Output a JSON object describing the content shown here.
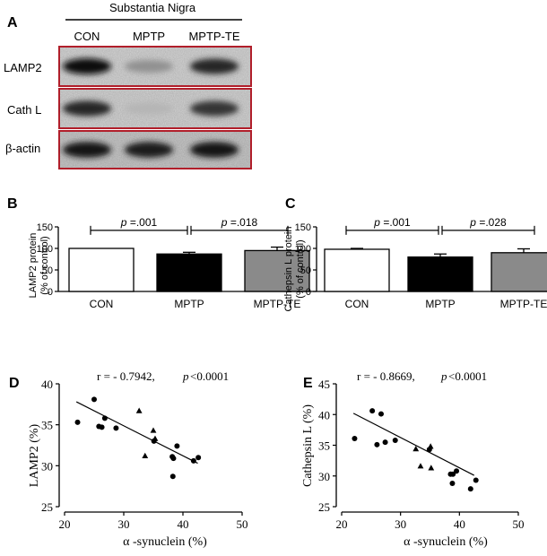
{
  "panels": {
    "a": "A",
    "b": "B",
    "c": "C",
    "d": "D",
    "e": "E"
  },
  "blot": {
    "region": "Substantia Nigra",
    "lanes": [
      "CON",
      "MPTP",
      "MPTP-TE"
    ],
    "rows": [
      "LAMP2",
      "Cath L",
      "β-actin"
    ],
    "colors": {
      "frame": "#b11e2a"
    },
    "bands": [
      {
        "row": "LAMP2",
        "intensity": [
          0.95,
          0.35,
          0.85
        ]
      },
      {
        "row": "Cath L",
        "intensity": [
          0.85,
          0.18,
          0.78
        ]
      },
      {
        "row": "β-actin",
        "intensity": [
          0.92,
          0.9,
          0.92
        ]
      }
    ]
  },
  "chart_data": [
    {
      "type": "bar",
      "title": "",
      "categories": [
        "CON",
        "MPTP",
        "MPTP-TE"
      ],
      "values": [
        100,
        87,
        95
      ],
      "errors": [
        0,
        4,
        8
      ],
      "ylabel": [
        "LAMP2 protein",
        "(% of control)"
      ],
      "ylim": [
        0,
        150
      ],
      "yticks": [
        "0",
        "50",
        "100",
        "150"
      ],
      "bar_colors": [
        "#ffffff",
        "#000000",
        "#8a8a8a"
      ],
      "significance": [
        {
          "from": 0,
          "to": 1,
          "prefix": "p",
          "text": " =.001"
        },
        {
          "from": 1,
          "to": 2,
          "prefix": "p",
          "text": " =.018"
        }
      ]
    },
    {
      "type": "bar",
      "title": "",
      "categories": [
        "CON",
        "MPTP",
        "MPTP-TE"
      ],
      "values": [
        98,
        80,
        90
      ],
      "errors": [
        2,
        7,
        9
      ],
      "ylabel": [
        "Cathepsin L protein",
        "(% of control)"
      ],
      "ylim": [
        0,
        150
      ],
      "yticks": [
        "0",
        "50",
        "100",
        "150"
      ],
      "bar_colors": [
        "#ffffff",
        "#000000",
        "#8a8a8a"
      ],
      "significance": [
        {
          "from": 0,
          "to": 1,
          "prefix": "p",
          "text": " =.001"
        },
        {
          "from": 1,
          "to": 2,
          "prefix": "p",
          "text": " =.028"
        }
      ]
    },
    {
      "type": "scatter",
      "title": "",
      "stat_r": "r = - 0.7942,",
      "stat_p_prefix": "p",
      "stat_p": "<0.0001",
      "xlabel": "α -synuclein (%)",
      "ylabel": "LAMP2 (%)",
      "xlim": [
        20,
        50
      ],
      "ylim": [
        25,
        40
      ],
      "xticks": [
        "20",
        "30",
        "40",
        "50"
      ],
      "yticks": [
        "25",
        "30",
        "35",
        "40"
      ],
      "fit": {
        "x": [
          22,
          42.5
        ],
        "y": [
          37.8,
          30.3
        ]
      },
      "series": [
        {
          "name": "circle",
          "marker": "circle",
          "points": [
            [
              22.2,
              35.3
            ],
            [
              25.0,
              38.1
            ],
            [
              25.8,
              34.8
            ],
            [
              26.3,
              34.7
            ],
            [
              26.8,
              35.8
            ],
            [
              28.7,
              34.6
            ],
            [
              35.1,
              33.0
            ],
            [
              38.2,
              31.1
            ],
            [
              38.4,
              30.9
            ],
            [
              38.3,
              28.7
            ],
            [
              39.0,
              32.4
            ],
            [
              41.8,
              30.6
            ],
            [
              42.6,
              31.0
            ]
          ]
        },
        {
          "name": "triangle",
          "marker": "triangle",
          "points": [
            [
              32.6,
              36.7
            ],
            [
              33.6,
              31.2
            ],
            [
              35.0,
              34.3
            ],
            [
              35.3,
              33.3
            ]
          ]
        }
      ]
    },
    {
      "type": "scatter",
      "title": "",
      "stat_r": "r = - 0.8669,",
      "stat_p_prefix": "p",
      "stat_p": "<0.0001",
      "xlabel": "α -synuclein (%)",
      "ylabel": "Cathepsin L (%)",
      "xlim": [
        20,
        50
      ],
      "ylim": [
        25,
        45
      ],
      "xticks": [
        "20",
        "30",
        "40",
        "50"
      ],
      "yticks": [
        "25",
        "30",
        "35",
        "40",
        "45"
      ],
      "fit": {
        "x": [
          22,
          42.5
        ],
        "y": [
          40.2,
          30.1
        ]
      },
      "series": [
        {
          "name": "circle",
          "marker": "circle",
          "points": [
            [
              22.2,
              36.1
            ],
            [
              25.2,
              40.6
            ],
            [
              26.0,
              35.1
            ],
            [
              26.7,
              40.1
            ],
            [
              27.4,
              35.5
            ],
            [
              29.1,
              35.8
            ],
            [
              34.9,
              34.3
            ],
            [
              38.5,
              30.3
            ],
            [
              38.8,
              28.8
            ],
            [
              38.9,
              30.3
            ],
            [
              39.5,
              30.8
            ],
            [
              41.9,
              27.9
            ],
            [
              42.8,
              29.3
            ]
          ]
        },
        {
          "name": "triangle",
          "marker": "triangle",
          "points": [
            [
              32.6,
              34.4
            ],
            [
              33.4,
              31.6
            ],
            [
              35.1,
              34.8
            ],
            [
              35.2,
              31.3
            ]
          ]
        }
      ]
    }
  ]
}
